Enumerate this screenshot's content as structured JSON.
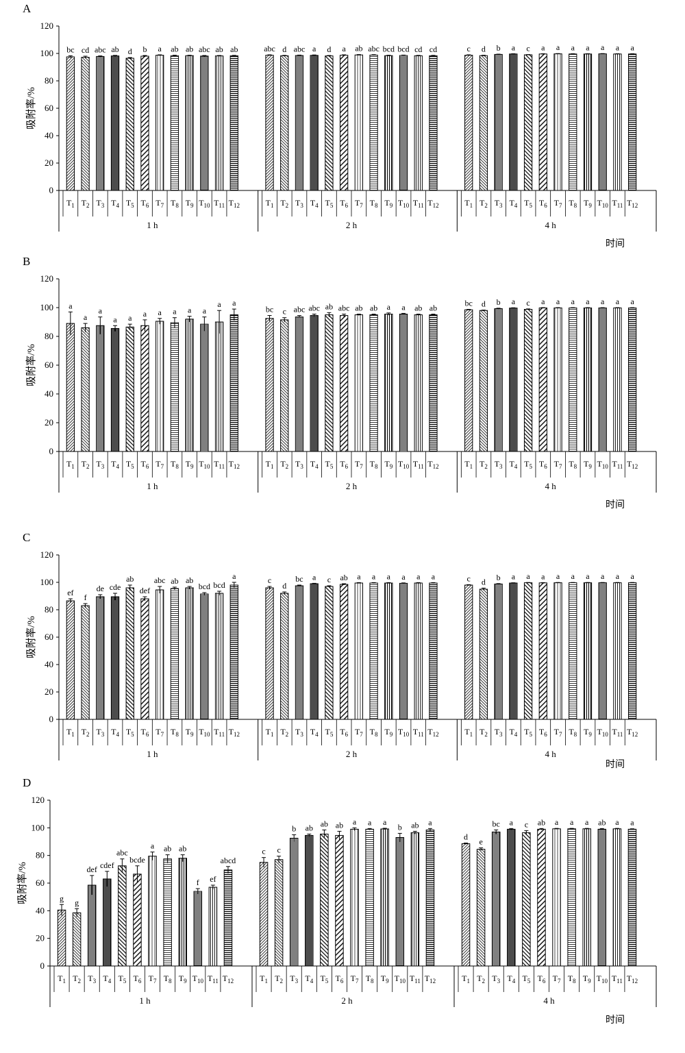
{
  "chart_data": [
    {
      "type": "bar",
      "panel": "A",
      "ylabel": "吸附率/%",
      "xlabel": "时间",
      "ylim": [
        0,
        120
      ],
      "yticks": [
        0,
        20,
        40,
        60,
        80,
        100,
        120
      ],
      "groups": [
        {
          "name": "1 h",
          "categories": [
            "T1",
            "T2",
            "T3",
            "T4",
            "T5",
            "T6",
            "T7",
            "T8",
            "T9",
            "T10",
            "T11",
            "T12"
          ],
          "values": [
            97.5,
            97.2,
            97.8,
            98.2,
            96.5,
            98.0,
            98.7,
            98.3,
            98.4,
            98.1,
            98.2,
            98.3
          ],
          "errors": [
            0.8,
            0.8,
            0.4,
            0.4,
            0.5,
            0.5,
            0.3,
            0.4,
            0.3,
            0.4,
            0.3,
            0.3
          ],
          "letters": [
            "bc",
            "cd",
            "abc",
            "ab",
            "d",
            "b",
            "a",
            "ab",
            "ab",
            "abc",
            "ab",
            "ab"
          ]
        },
        {
          "name": "2 h",
          "categories": [
            "T1",
            "T2",
            "T3",
            "T4",
            "T5",
            "T6",
            "T7",
            "T8",
            "T9",
            "T10",
            "T11",
            "T12"
          ],
          "values": [
            98.7,
            98.3,
            98.5,
            98.6,
            98.2,
            98.7,
            98.9,
            98.8,
            98.4,
            98.5,
            98.3,
            98.3
          ],
          "errors": [
            0.3,
            0.3,
            0.3,
            0.3,
            0.3,
            0.3,
            0.3,
            0.3,
            0.3,
            0.3,
            0.3,
            0.3
          ],
          "letters": [
            "abc",
            "d",
            "abc",
            "a",
            "d",
            "a",
            "ab",
            "abc",
            "bcd",
            "bcd",
            "cd",
            "cd"
          ]
        },
        {
          "name": "4 h",
          "categories": [
            "T1",
            "T2",
            "T3",
            "T4",
            "T5",
            "T6",
            "T7",
            "T8",
            "T9",
            "T10",
            "T11",
            "T12"
          ],
          "values": [
            98.7,
            98.4,
            99.3,
            99.6,
            99.0,
            99.6,
            99.7,
            99.6,
            99.6,
            99.7,
            99.6,
            99.6
          ],
          "errors": [
            0.3,
            0.3,
            0.2,
            0.2,
            0.2,
            0.2,
            0.2,
            0.2,
            0.2,
            0.2,
            0.2,
            0.2
          ],
          "letters": [
            "c",
            "d",
            "b",
            "a",
            "c",
            "a",
            "a",
            "a",
            "a",
            "a",
            "a",
            "a"
          ]
        }
      ]
    },
    {
      "type": "bar",
      "panel": "B",
      "ylabel": "吸附率/%",
      "xlabel": "时间",
      "ylim": [
        0,
        120
      ],
      "yticks": [
        0,
        20,
        40,
        60,
        80,
        100,
        120
      ],
      "groups": [
        {
          "name": "1 h",
          "categories": [
            "T1",
            "T2",
            "T3",
            "T4",
            "T5",
            "T6",
            "T7",
            "T8",
            "T9",
            "T10",
            "T11",
            "T12"
          ],
          "values": [
            89,
            86,
            87.5,
            85.5,
            86.5,
            87.5,
            90.5,
            89.5,
            92,
            88.5,
            90,
            95
          ],
          "errors": [
            8,
            3,
            6,
            2,
            2,
            4,
            2,
            3.5,
            2,
            5,
            8,
            4
          ],
          "letters": [
            "a",
            "a",
            "a",
            "a",
            "a",
            "a",
            "a",
            "a",
            "a",
            "a",
            "a",
            "a"
          ]
        },
        {
          "name": "2 h",
          "categories": [
            "T1",
            "T2",
            "T3",
            "T4",
            "T5",
            "T6",
            "T7",
            "T8",
            "T9",
            "T10",
            "T11",
            "T12"
          ],
          "values": [
            92.5,
            91.5,
            93.5,
            94.5,
            95,
            94.5,
            95,
            95,
            95.5,
            95.5,
            95,
            95
          ],
          "errors": [
            2,
            1.5,
            1,
            1,
            1.5,
            1,
            0.5,
            0.5,
            0.8,
            0.5,
            0.5,
            0.5
          ],
          "letters": [
            "bc",
            "c",
            "abc",
            "abc",
            "ab",
            "abc",
            "ab",
            "ab",
            "a",
            "a",
            "ab",
            "ab"
          ]
        },
        {
          "name": "4 h",
          "categories": [
            "T1",
            "T2",
            "T3",
            "T4",
            "T5",
            "T6",
            "T7",
            "T8",
            "T9",
            "T10",
            "T11",
            "T12"
          ],
          "values": [
            98.5,
            98,
            99.3,
            99.7,
            98.8,
            99.8,
            99.8,
            99.8,
            99.8,
            99.8,
            99.8,
            99.8
          ],
          "errors": [
            0.3,
            0.3,
            0.3,
            0.2,
            0.3,
            0.2,
            0.2,
            0.2,
            0.2,
            0.2,
            0.2,
            0.2
          ],
          "letters": [
            "bc",
            "d",
            "b",
            "a",
            "c",
            "a",
            "a",
            "a",
            "a",
            "a",
            "a",
            "a"
          ]
        }
      ]
    },
    {
      "type": "bar",
      "panel": "C",
      "ylabel": "吸附率/%",
      "xlabel": "时间",
      "ylim": [
        0,
        120
      ],
      "yticks": [
        0,
        20,
        40,
        60,
        80,
        100,
        120
      ],
      "groups": [
        {
          "name": "1 h",
          "categories": [
            "T1",
            "T2",
            "T3",
            "T4",
            "T5",
            "T6",
            "T7",
            "T8",
            "T9",
            "T10",
            "T11",
            "T12"
          ],
          "values": [
            86.5,
            83,
            89.5,
            89.5,
            96,
            88,
            94.5,
            95.5,
            96,
            91.5,
            92,
            98
          ],
          "errors": [
            1.5,
            1.5,
            1.5,
            2.5,
            2,
            1.5,
            2.5,
            1,
            1,
            1,
            1.5,
            2
          ],
          "letters": [
            "ef",
            "f",
            "de",
            "cde",
            "ab",
            "def",
            "abc",
            "ab",
            "ab",
            "bcd",
            "bcd",
            "a"
          ]
        },
        {
          "name": "2 h",
          "categories": [
            "T1",
            "T2",
            "T3",
            "T4",
            "T5",
            "T6",
            "T7",
            "T8",
            "T9",
            "T10",
            "T11",
            "T12"
          ],
          "values": [
            96,
            92,
            97.5,
            99,
            97,
            98.5,
            99.5,
            99.5,
            99.5,
            99.3,
            99.5,
            99.5
          ],
          "errors": [
            1,
            1,
            0.5,
            0.3,
            0.5,
            0.5,
            0.3,
            0.3,
            0.3,
            0.3,
            0.3,
            0.3
          ],
          "letters": [
            "c",
            "d",
            "bc",
            "a",
            "c",
            "ab",
            "a",
            "a",
            "a",
            "a",
            "a",
            "a"
          ]
        },
        {
          "name": "4 h",
          "categories": [
            "T1",
            "T2",
            "T3",
            "T4",
            "T5",
            "T6",
            "T7",
            "T8",
            "T9",
            "T10",
            "T11",
            "T12"
          ],
          "values": [
            98,
            95,
            98.8,
            99.5,
            99.7,
            99.6,
            99.7,
            99.7,
            99.7,
            99.7,
            99.7,
            99.7
          ],
          "errors": [
            0.3,
            0.8,
            0.3,
            0.2,
            0.2,
            0.2,
            0.2,
            0.2,
            0.2,
            0.2,
            0.2,
            0.2
          ],
          "letters": [
            "c",
            "d",
            "b",
            "a",
            "a",
            "a",
            "a",
            "a",
            "a",
            "a",
            "a",
            "a"
          ]
        }
      ]
    },
    {
      "type": "bar",
      "panel": "D",
      "ylabel": "吸附率/%",
      "xlabel": "时间",
      "ylim": [
        0,
        120
      ],
      "yticks": [
        0,
        20,
        40,
        60,
        80,
        100,
        120
      ],
      "groups": [
        {
          "name": "1 h",
          "categories": [
            "T1",
            "T2",
            "T3",
            "T4",
            "T5",
            "T6",
            "T7",
            "T8",
            "T9",
            "T10",
            "T11",
            "T12"
          ],
          "values": [
            40.5,
            38.5,
            58.5,
            63,
            72.5,
            66.5,
            79.5,
            77.5,
            78,
            54,
            57,
            69.5
          ],
          "errors": [
            4,
            3,
            7,
            5.5,
            5,
            6,
            3,
            3,
            2.5,
            2,
            1.5,
            2.5
          ],
          "letters": [
            "g",
            "g",
            "def",
            "cdef",
            "abc",
            "bcde",
            "a",
            "ab",
            "ab",
            "f",
            "ef",
            "abcd"
          ]
        },
        {
          "name": "2 h",
          "categories": [
            "T1",
            "T2",
            "T3",
            "T4",
            "T5",
            "T6",
            "T7",
            "T8",
            "T9",
            "T10",
            "T11",
            "T12"
          ],
          "values": [
            75,
            77,
            92.5,
            94.5,
            95.5,
            94.5,
            99,
            99,
            99.2,
            93,
            96.5,
            98.5
          ],
          "errors": [
            3.5,
            2.5,
            2.5,
            1,
            3,
            3,
            1,
            0.5,
            0.5,
            3,
            1,
            1
          ],
          "letters": [
            "c",
            "c",
            "b",
            "ab",
            "ab",
            "ab",
            "a",
            "a",
            "a",
            "b",
            "ab",
            "a"
          ]
        },
        {
          "name": "4 h",
          "categories": [
            "T1",
            "T2",
            "T3",
            "T4",
            "T5",
            "T6",
            "T7",
            "T8",
            "T9",
            "T10",
            "T11",
            "T12"
          ],
          "values": [
            88.5,
            84.5,
            97,
            99,
            96.5,
            99,
            99.3,
            99.3,
            99.3,
            99,
            99.3,
            99
          ],
          "errors": [
            0.5,
            1,
            1.5,
            0.5,
            1.5,
            0.5,
            0.3,
            0.3,
            0.3,
            0.5,
            0.3,
            0.3
          ],
          "letters": [
            "d",
            "e",
            "bc",
            "a",
            "c",
            "ab",
            "a",
            "a",
            "a",
            "ab",
            "a",
            "a"
          ]
        }
      ]
    }
  ]
}
